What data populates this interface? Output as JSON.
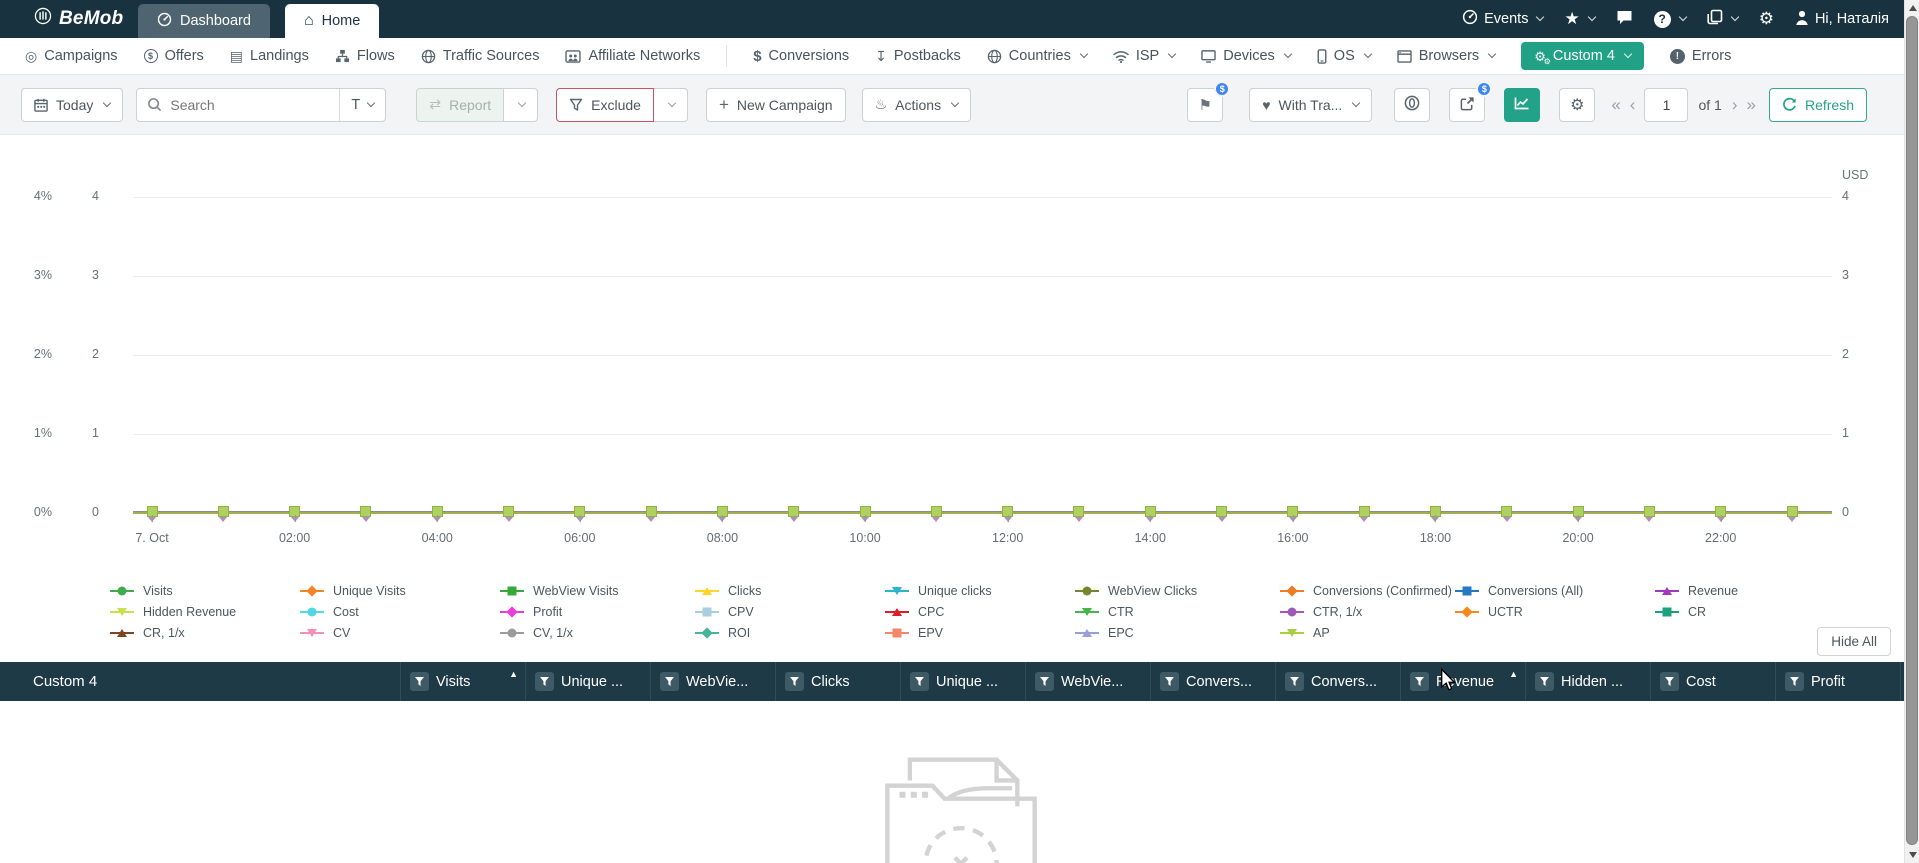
{
  "topbar": {
    "brand": "BeMob",
    "tabs": [
      {
        "label": "Dashboard",
        "icon": "dashboard-gauge-icon",
        "active": false
      },
      {
        "label": "Home",
        "icon": "home-icon",
        "active": true
      }
    ],
    "right": {
      "events_label": "Events",
      "greeting": "Hi, Наталія"
    }
  },
  "nav": {
    "items": [
      {
        "label": "Campaigns",
        "icon": "campaigns-icon"
      },
      {
        "label": "Offers",
        "icon": "offers-icon"
      },
      {
        "label": "Landings",
        "icon": "landings-icon"
      },
      {
        "label": "Flows",
        "icon": "flows-icon"
      },
      {
        "label": "Traffic Sources",
        "icon": "traffic-sources-icon"
      },
      {
        "label": "Affiliate Networks",
        "icon": "affiliate-networks-icon"
      },
      {
        "divider": true
      },
      {
        "label": "Conversions",
        "icon": "conversions-icon"
      },
      {
        "label": "Postbacks",
        "icon": "postbacks-icon"
      },
      {
        "label": "Countries",
        "icon": "countries-icon",
        "chevron": true
      },
      {
        "label": "ISP",
        "icon": "isp-icon",
        "chevron": true
      },
      {
        "label": "Devices",
        "icon": "devices-icon",
        "chevron": true
      },
      {
        "label": "OS",
        "icon": "os-icon",
        "chevron": true
      },
      {
        "label": "Browsers",
        "icon": "browsers-icon",
        "chevron": true
      },
      {
        "label": "Custom 4",
        "icon": "custom-gears-icon",
        "chevron": true,
        "variant": "primary"
      },
      {
        "label": "Errors",
        "icon": "errors-icon"
      }
    ]
  },
  "toolbar": {
    "date_label": "Today",
    "search_placeholder": "Search",
    "search_type_label": "T",
    "report_label": "Report",
    "exclude_label": "Exclude",
    "new_campaign_label": "New Campaign",
    "actions_label": "Actions",
    "traffic_filter_label": "With Tra...",
    "flag_badge": "$",
    "share_badge": "$",
    "page_value": "1",
    "page_total": "of 1",
    "refresh_label": "Refresh"
  },
  "chart_data": {
    "type": "line",
    "title": "",
    "x_axis": {
      "tick_labels": [
        "7. Oct",
        "02:00",
        "04:00",
        "06:00",
        "08:00",
        "10:00",
        "12:00",
        "14:00",
        "16:00",
        "18:00",
        "20:00",
        "22:00"
      ],
      "points": 24,
      "interval": "1 hour",
      "date": "7 Oct"
    },
    "y_axis_left_percent": {
      "labels": [
        "4%",
        "3%",
        "2%",
        "1%",
        "0%"
      ],
      "min": 0,
      "max": 4
    },
    "y_axis_left_value": {
      "labels": [
        "4",
        "3",
        "2",
        "1",
        "0"
      ],
      "min": 0,
      "max": 4
    },
    "y_axis_right": {
      "title": "USD",
      "labels": [
        "4",
        "3",
        "2",
        "1",
        "0"
      ],
      "min": 0,
      "max": 4
    },
    "grid": true,
    "data_note": "All 25 series are flat at 0 for every hourly point on 7 Oct (00:00-23:00)",
    "series": [
      {
        "name": "Visits",
        "marker": "circle",
        "color": "#3dac4e",
        "uniform_value": 0
      },
      {
        "name": "Unique Visits",
        "marker": "diamond",
        "color": "#f58426",
        "uniform_value": 0
      },
      {
        "name": "WebView Visits",
        "marker": "square",
        "color": "#38a83a",
        "uniform_value": 0
      },
      {
        "name": "Clicks",
        "marker": "triangle-up",
        "color": "#ffd428",
        "uniform_value": 0
      },
      {
        "name": "Unique clicks",
        "marker": "triangle-down",
        "color": "#2ab5c8",
        "uniform_value": 0
      },
      {
        "name": "WebView Clicks",
        "marker": "circle",
        "color": "#76862c",
        "uniform_value": 0
      },
      {
        "name": "Conversions (Confirmed)",
        "marker": "diamond",
        "color": "#ee7c24",
        "uniform_value": 0
      },
      {
        "name": "Conversions (All)",
        "marker": "square",
        "color": "#2379c2",
        "uniform_value": 0
      },
      {
        "name": "Revenue",
        "marker": "triangle-up",
        "color": "#a238c0",
        "uniform_value": 0
      },
      {
        "name": "Hidden Revenue",
        "marker": "triangle-down",
        "color": "#c6e34e",
        "uniform_value": 0
      },
      {
        "name": "Cost",
        "marker": "circle",
        "color": "#4fd9e4",
        "uniform_value": 0
      },
      {
        "name": "Profit",
        "marker": "diamond",
        "color": "#e93de0",
        "uniform_value": 0
      },
      {
        "name": "CPV",
        "marker": "square",
        "color": "#a9cede",
        "uniform_value": 0
      },
      {
        "name": "CPC",
        "marker": "triangle-up",
        "color": "#df1f28",
        "uniform_value": 0
      },
      {
        "name": "CTR",
        "marker": "triangle-down",
        "color": "#43b64a",
        "uniform_value": 0
      },
      {
        "name": "CTR, 1/x",
        "marker": "circle",
        "color": "#9c59b8",
        "uniform_value": 0
      },
      {
        "name": "UCTR",
        "marker": "diamond",
        "color": "#f6891e",
        "uniform_value": 0
      },
      {
        "name": "CR",
        "marker": "square",
        "color": "#1ca17c",
        "uniform_value": 0
      },
      {
        "name": "CR, 1/x",
        "marker": "triangle-up",
        "color": "#7e4527",
        "uniform_value": 0
      },
      {
        "name": "CV",
        "marker": "triangle-down",
        "color": "#f48fb6",
        "uniform_value": 0
      },
      {
        "name": "CV, 1/x",
        "marker": "circle",
        "color": "#9b9b9b",
        "uniform_value": 0
      },
      {
        "name": "ROI",
        "marker": "diamond",
        "color": "#49b39e",
        "uniform_value": 0
      },
      {
        "name": "EPV",
        "marker": "square",
        "color": "#f58767",
        "uniform_value": 0
      },
      {
        "name": "EPC",
        "marker": "triangle-up",
        "color": "#95a0d6",
        "uniform_value": 0
      },
      {
        "name": "AP",
        "marker": "triangle-down",
        "color": "#a8cf44",
        "uniform_value": 0
      }
    ]
  },
  "legend": {
    "hide_all_label": "Hide All"
  },
  "table": {
    "first_column": "Custom 4",
    "columns": [
      {
        "label": "Visits",
        "sort": "asc"
      },
      {
        "label": "Unique ..."
      },
      {
        "label": "WebVie..."
      },
      {
        "label": "Clicks"
      },
      {
        "label": "Unique ..."
      },
      {
        "label": "WebVie..."
      },
      {
        "label": "Convers..."
      },
      {
        "label": "Convers..."
      },
      {
        "label": "Revenue",
        "sort": "asc"
      },
      {
        "label": "Hidden ..."
      },
      {
        "label": "Cost"
      },
      {
        "label": "Profit"
      },
      {
        "label": ""
      }
    ]
  },
  "accent_colors": {
    "topbar_dark": "#18333f",
    "green": "#21a287",
    "badge_blue": "#3f86f4",
    "exclude_red": "#c9545e"
  }
}
